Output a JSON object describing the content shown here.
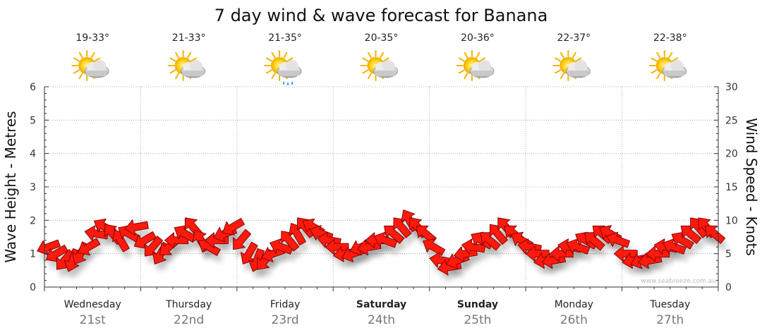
{
  "colors": {
    "arrow": "#ff1a0d",
    "arrow_stroke": "#7a0000",
    "grid": "#9a9a9a",
    "axis": "#333333"
  },
  "icons": [
    "sun-cloud-icon",
    "sun-cloud-icon",
    "sun-cloud-rain-icon",
    "sun-cloud-icon",
    "sun-cloud-icon",
    "sun-cloud-icon",
    "sun-cloud-icon"
  ],
  "credit": "www.seabreeze.com.au",
  "chart_data": {
    "type": "scatter",
    "title": "7 day wind & wave forecast for Banana",
    "ylabel_left": "Wave Height - Metres",
    "ylabel_right": "Wind Speed - Knots",
    "ylim_left": [
      0,
      6
    ],
    "ylim_right": [
      0,
      30
    ],
    "yticks_left": [
      "0",
      "1",
      "2",
      "3",
      "4",
      "5",
      "6"
    ],
    "yticks_right": [
      "0",
      "5",
      "10",
      "15",
      "20",
      "25",
      "30"
    ],
    "grid": true,
    "days": [
      {
        "name": "Wednesday",
        "date": "21st",
        "temp": "19-33°",
        "bold": false
      },
      {
        "name": "Thursday",
        "date": "22nd",
        "temp": "21-33°",
        "bold": false
      },
      {
        "name": "Friday",
        "date": "23rd",
        "temp": "21-35°",
        "bold": false
      },
      {
        "name": "Saturday",
        "date": "24th",
        "temp": "20-35°",
        "bold": true
      },
      {
        "name": "Sunday",
        "date": "25th",
        "temp": "20-36°",
        "bold": true
      },
      {
        "name": "Monday",
        "date": "26th",
        "temp": "22-37°",
        "bold": false
      },
      {
        "name": "Tuesday",
        "date": "27th",
        "temp": "22-38°",
        "bold": false
      }
    ],
    "wind_series": {
      "name": "Wind",
      "hours_per_point": 4,
      "speed_knots": [
        6,
        5,
        4,
        4,
        5,
        6,
        8,
        9,
        8,
        7,
        8,
        9,
        7,
        6,
        5,
        6,
        7,
        8,
        9,
        7,
        6,
        7,
        8,
        9,
        7,
        5,
        4,
        4,
        5,
        6,
        7,
        8,
        9,
        9,
        8,
        7,
        6,
        5,
        5,
        6,
        6,
        7,
        7,
        8,
        9,
        10,
        9,
        8,
        6,
        4,
        3,
        4,
        5,
        6,
        7,
        7,
        8,
        9,
        8,
        7,
        6,
        5,
        4,
        4,
        5,
        6,
        6,
        7,
        7,
        8,
        8,
        7,
        5,
        4,
        4,
        4,
        5,
        6,
        6,
        7,
        8,
        9,
        9,
        8
      ],
      "direction_deg": [
        70,
        60,
        40,
        20,
        30,
        60,
        100,
        120,
        140,
        150,
        120,
        80,
        60,
        40,
        30,
        50,
        90,
        120,
        140,
        150,
        120,
        90,
        70,
        60,
        40,
        30,
        20,
        40,
        70,
        110,
        140,
        150,
        140,
        120,
        110,
        100,
        90,
        80,
        70,
        70,
        80,
        90,
        110,
        130,
        140,
        150,
        140,
        130,
        120,
        100,
        80,
        70,
        80,
        100,
        120,
        130,
        140,
        140,
        130,
        120,
        100,
        90,
        80,
        80,
        90,
        100,
        110,
        120,
        130,
        130,
        120,
        110,
        90,
        80,
        70,
        80,
        90,
        100,
        110,
        120,
        130,
        140,
        140,
        130
      ]
    }
  }
}
